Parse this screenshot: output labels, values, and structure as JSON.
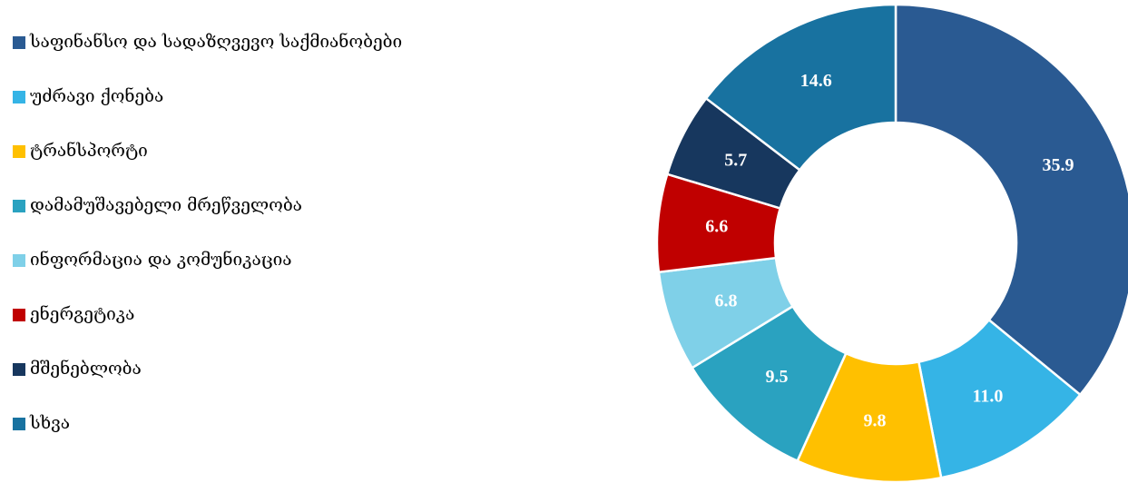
{
  "chart_data": {
    "type": "donut",
    "categories": [
      "საფინანსო და სადაზღვევო საქმიანობები",
      "უძრავი ქონება",
      "ტრანსპორტი",
      "დამამუშავებელი მრეწველობა",
      "ინფორმაცია და კომუნიკაცია",
      "ენერგეტიკა",
      "მშენებლობა",
      "სხვა"
    ],
    "values": [
      35.9,
      11.0,
      9.8,
      9.5,
      6.8,
      6.6,
      5.7,
      14.6
    ],
    "value_labels": [
      "35.9",
      "11.0",
      "9.8",
      "9.5",
      "6.8",
      "6.6",
      "5.7",
      "14.6"
    ],
    "colors": [
      "#2a5a92",
      "#35b4e6",
      "#ffc000",
      "#2aa2c0",
      "#7fd0e8",
      "#c00000",
      "#17375e",
      "#1872a0"
    ],
    "legend": "left"
  }
}
